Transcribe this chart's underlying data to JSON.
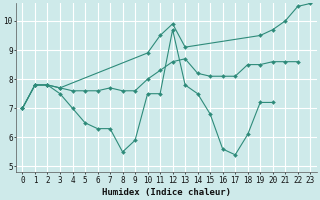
{
  "xlabel": "Humidex (Indice chaleur)",
  "bg_color": "#ceeaea",
  "grid_color": "#ffffff",
  "line_color": "#2e8b7a",
  "line1_x": [
    0,
    1,
    2,
    3,
    4,
    5,
    6,
    7,
    8,
    9,
    10,
    11,
    12,
    13,
    14,
    15,
    16,
    17,
    18,
    19,
    20
  ],
  "line1_y": [
    7.0,
    7.8,
    7.8,
    7.5,
    7.0,
    6.5,
    6.3,
    6.3,
    5.5,
    5.9,
    7.5,
    7.5,
    9.7,
    7.8,
    7.5,
    6.8,
    5.6,
    5.4,
    6.1,
    7.2,
    7.2
  ],
  "line2_x": [
    0,
    1,
    2,
    3,
    4,
    5,
    6,
    7,
    8,
    9,
    10,
    11,
    12,
    13,
    14,
    15,
    16,
    17,
    18,
    19,
    20,
    21,
    22
  ],
  "line2_y": [
    7.0,
    7.8,
    7.8,
    7.7,
    7.6,
    7.6,
    7.6,
    7.7,
    7.6,
    7.6,
    8.0,
    8.3,
    8.6,
    8.7,
    8.2,
    8.1,
    8.1,
    8.1,
    8.5,
    8.5,
    8.6,
    8.6,
    8.6
  ],
  "line3_x": [
    0,
    1,
    2,
    3,
    10,
    11,
    12,
    13,
    19,
    20,
    21,
    22,
    23
  ],
  "line3_y": [
    7.0,
    7.8,
    7.8,
    7.7,
    8.9,
    9.5,
    9.9,
    9.1,
    9.5,
    9.7,
    10.0,
    10.5,
    10.6
  ],
  "xlim": [
    -0.5,
    23.5
  ],
  "ylim": [
    4.8,
    10.6
  ],
  "yticks": [
    5,
    6,
    7,
    8,
    9,
    10
  ],
  "xticks": [
    0,
    1,
    2,
    3,
    4,
    5,
    6,
    7,
    8,
    9,
    10,
    11,
    12,
    13,
    14,
    15,
    16,
    17,
    18,
    19,
    20,
    21,
    22,
    23
  ]
}
